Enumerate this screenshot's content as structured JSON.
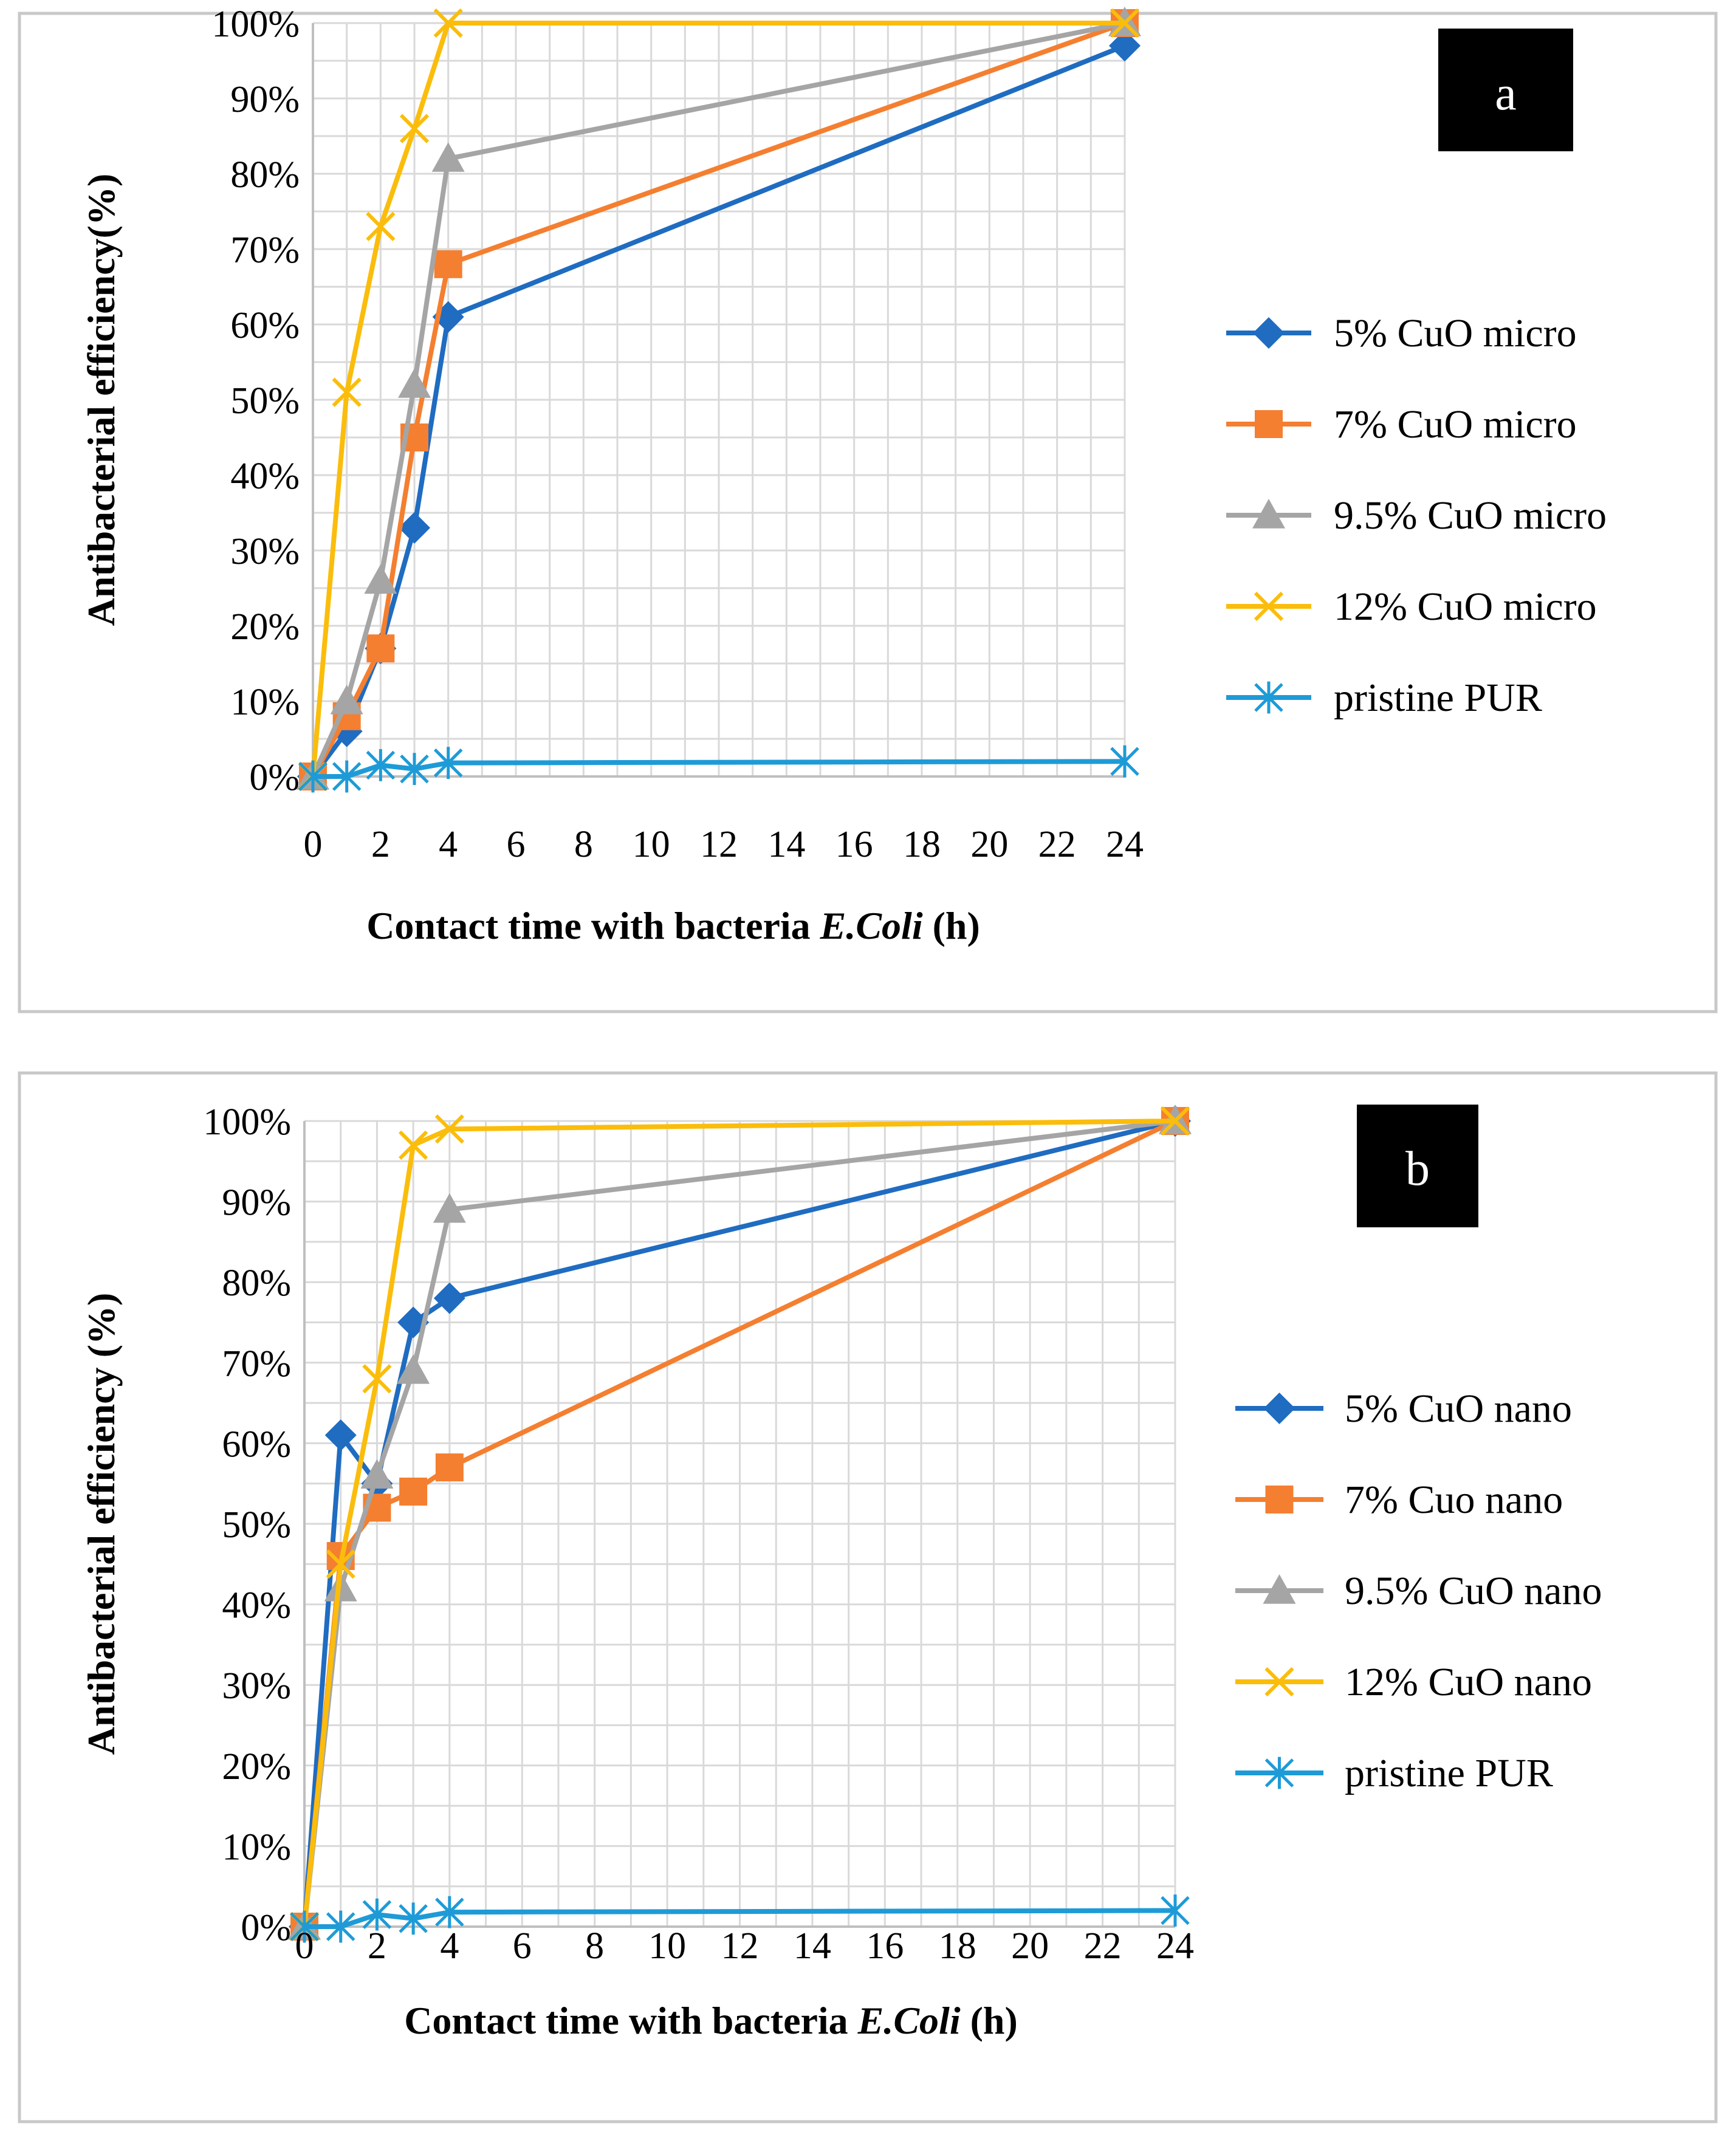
{
  "chart_data": [
    {
      "type": "line",
      "panel_label": "a",
      "xlabel_parts": [
        "Contact time with bacteria ",
        "E.Coli",
        " (h)"
      ],
      "ylabel": "Antibacterial efficiency(%)",
      "x_ticks": [
        "0",
        "2",
        "4",
        "6",
        "8",
        "10",
        "12",
        "14",
        "16",
        "18",
        "20",
        "22",
        "24"
      ],
      "y_ticks": [
        "0%",
        "10%",
        "20%",
        "30%",
        "40%",
        "50%",
        "60%",
        "70%",
        "80%",
        "90%",
        "100%"
      ],
      "xlim": [
        0,
        24
      ],
      "ylim": [
        0,
        100
      ],
      "grid": true,
      "legend_position": "right",
      "series": [
        {
          "name": "5% CuO micro",
          "color": "#1f6cc1",
          "marker": "diamond",
          "x": [
            0,
            1,
            2,
            3,
            4,
            24
          ],
          "y": [
            0,
            6,
            17,
            33,
            61,
            97
          ]
        },
        {
          "name": "7% CuO micro",
          "color": "#f47f30",
          "marker": "square",
          "x": [
            0,
            1,
            2,
            3,
            4,
            24
          ],
          "y": [
            0,
            8,
            17,
            45,
            68,
            100
          ]
        },
        {
          "name": "9.5% CuO micro",
          "color": "#a5a5a5",
          "marker": "triangle",
          "x": [
            0,
            1,
            2,
            3,
            4,
            24
          ],
          "y": [
            0,
            10,
            26,
            52,
            82,
            100
          ]
        },
        {
          "name": "12% CuO micro",
          "color": "#fbbd0c",
          "marker": "x",
          "x": [
            0,
            1,
            2,
            3,
            4,
            24
          ],
          "y": [
            0,
            51,
            73,
            86,
            100,
            100
          ]
        },
        {
          "name": "pristine PUR",
          "color": "#1e9bd7",
          "marker": "star",
          "x": [
            0,
            1,
            2,
            3,
            4,
            24
          ],
          "y": [
            0,
            0,
            1.5,
            1,
            1.8,
            2
          ]
        }
      ]
    },
    {
      "type": "line",
      "panel_label": "b",
      "xlabel_parts": [
        "Contact time with bacteria ",
        "E.Coli",
        " (h)"
      ],
      "ylabel": "Antibacterial efficiency (%)",
      "x_ticks": [
        "0",
        "2",
        "4",
        "6",
        "8",
        "10",
        "12",
        "14",
        "16",
        "18",
        "20",
        "22",
        "24"
      ],
      "y_ticks": [
        "0%",
        "10%",
        "20%",
        "30%",
        "40%",
        "50%",
        "60%",
        "70%",
        "80%",
        "90%",
        "100%"
      ],
      "xlim": [
        0,
        24
      ],
      "ylim": [
        0,
        100
      ],
      "grid": true,
      "legend_position": "right",
      "series": [
        {
          "name": "5% CuO nano",
          "color": "#1f6cc1",
          "marker": "diamond",
          "x": [
            0,
            1,
            2,
            3,
            4,
            24
          ],
          "y": [
            0,
            61,
            55,
            75,
            78,
            100
          ]
        },
        {
          "name": "7% Cuo nano",
          "color": "#f47f30",
          "marker": "square",
          "x": [
            0,
            1,
            2,
            3,
            4,
            24
          ],
          "y": [
            0,
            46,
            52,
            54,
            57,
            100
          ]
        },
        {
          "name": "9.5% CuO nano",
          "color": "#a5a5a5",
          "marker": "triangle",
          "x": [
            0,
            1,
            2,
            3,
            4,
            24
          ],
          "y": [
            0,
            42,
            56,
            69,
            89,
            100
          ]
        },
        {
          "name": "12% CuO nano",
          "color": "#fbbd0c",
          "marker": "x",
          "x": [
            0,
            1,
            2,
            3,
            4,
            24
          ],
          "y": [
            0,
            45,
            68,
            97,
            99,
            100
          ]
        },
        {
          "name": "pristine PUR",
          "color": "#1e9bd7",
          "marker": "star",
          "x": [
            0,
            1,
            2,
            3,
            4,
            24
          ],
          "y": [
            0,
            0,
            1.5,
            1,
            1.8,
            2
          ]
        }
      ]
    }
  ]
}
